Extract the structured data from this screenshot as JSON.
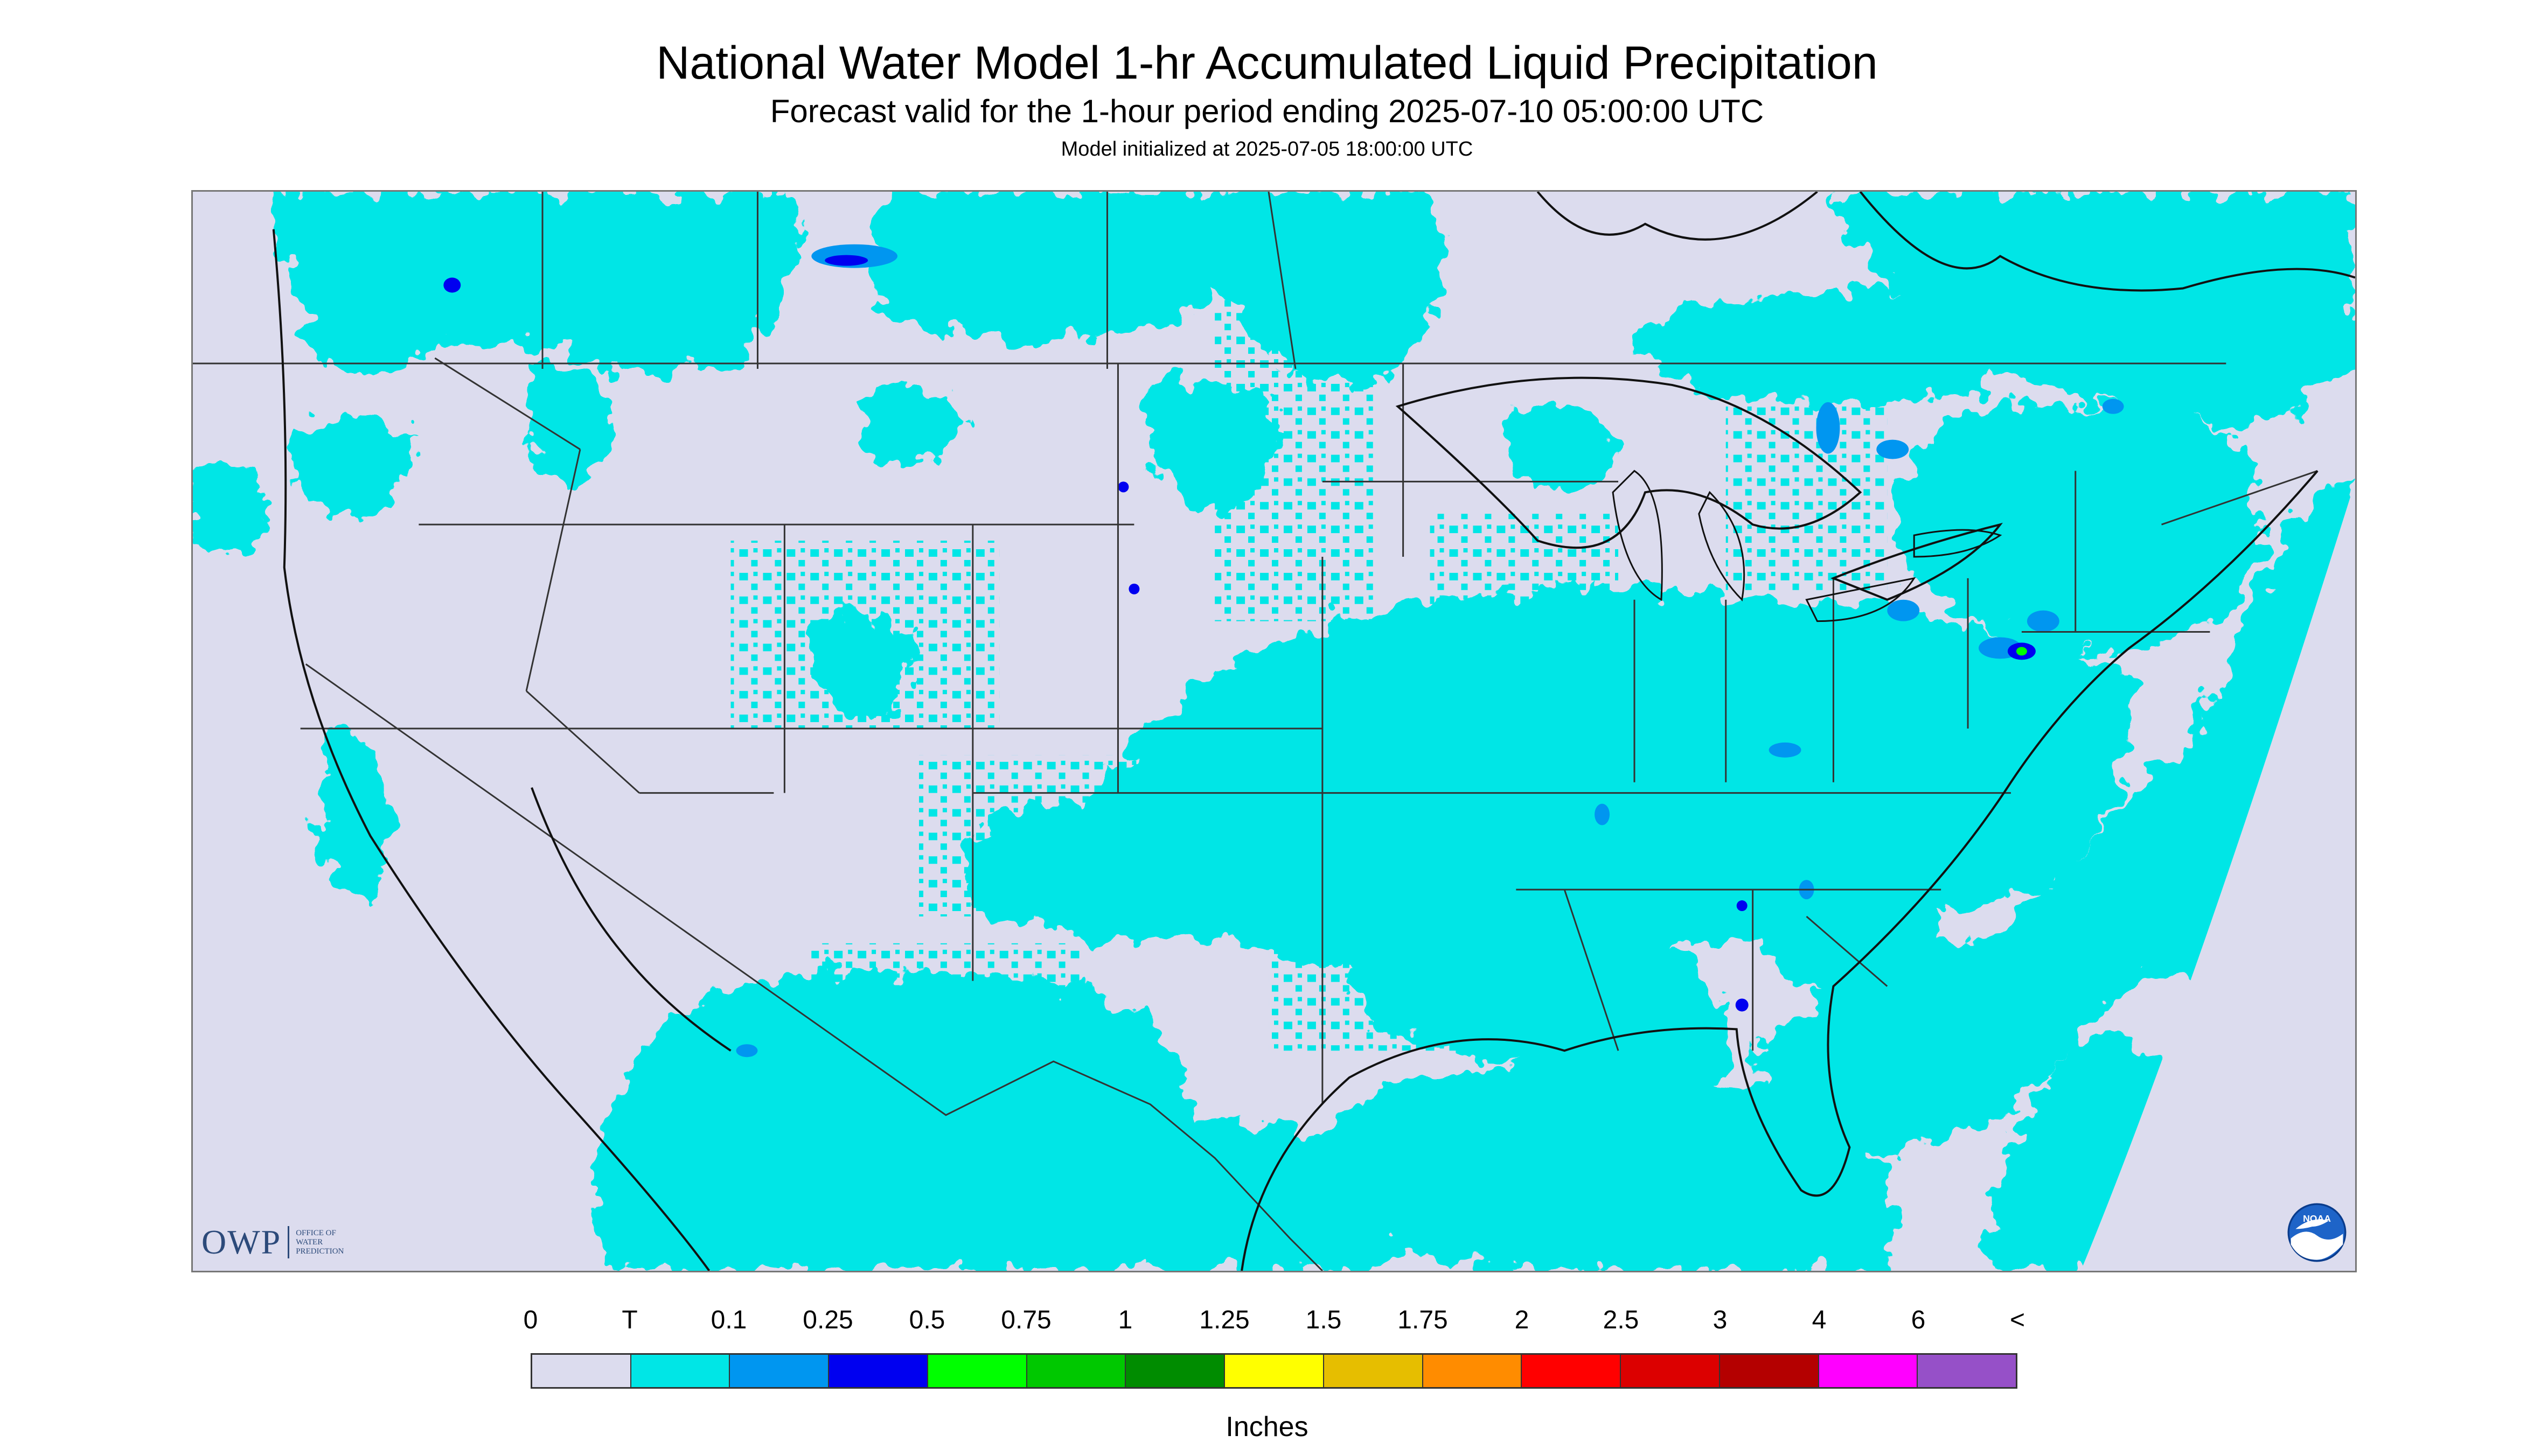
{
  "header": {
    "title": "National Water Model 1-hr Accumulated Liquid Precipitation",
    "subtitle": "Forecast valid for the 1-hour period ending 2025-07-10 05:00:00 UTC",
    "init_line": "Model initialized at 2025-07-05 18:00:00 UTC"
  },
  "map": {
    "background_color": "#dcdcee",
    "precip_light_color": "#00e6e6",
    "precip_mid_color": "#0096f0",
    "precip_heavy_color": "#0000f0",
    "precip_extreme_color": "#00ff00",
    "boundary_color": "#333333"
  },
  "logos": {
    "owp_mark": "OWP",
    "owp_subtitle_lines": [
      "Office of",
      "Water",
      "Prediction"
    ],
    "noaa_mark": "NOAA"
  },
  "legend": {
    "tick_labels": [
      "0",
      "T",
      "0.1",
      "0.25",
      "0.5",
      "0.75",
      "1",
      "1.25",
      "1.5",
      "1.75",
      "2",
      "2.5",
      "3",
      "4",
      "6",
      "<"
    ],
    "colors": [
      "#dcdcee",
      "#00e6e6",
      "#0096f0",
      "#0000f0",
      "#00ff00",
      "#00c800",
      "#008c00",
      "#ffff00",
      "#e6be00",
      "#ff8c00",
      "#ff0000",
      "#dc0000",
      "#b40000",
      "#ff00ff",
      "#9650c8"
    ],
    "unit": "Inches"
  }
}
